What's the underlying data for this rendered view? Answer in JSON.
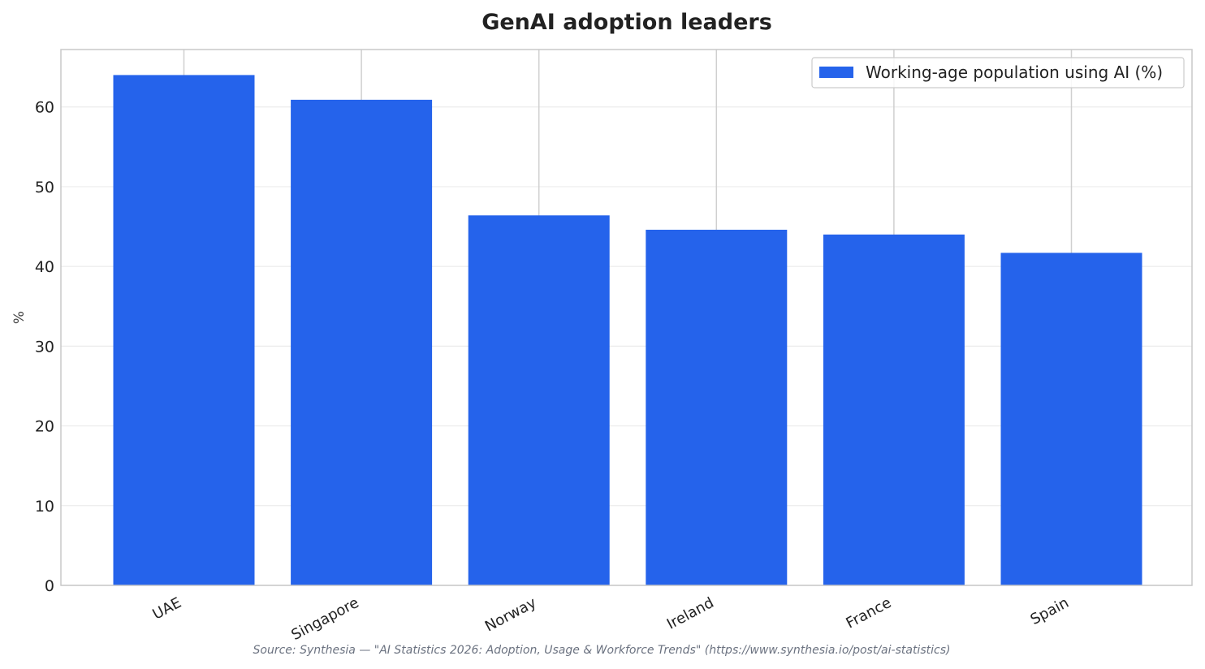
{
  "chart_data": {
    "type": "bar",
    "title": "GenAI adoption leaders",
    "xlabel": "",
    "ylabel": "%",
    "categories": [
      "UAE",
      "Singapore",
      "Norway",
      "Ireland",
      "France",
      "Spain"
    ],
    "series": [
      {
        "name": "Working-age population using AI (%)",
        "values": [
          64.0,
          60.9,
          46.4,
          44.6,
          44.0,
          41.7
        ],
        "color": "#2563eb"
      }
    ],
    "ylim": [
      0,
      67.2
    ],
    "yticks": [
      "0",
      "10",
      "20",
      "30",
      "40",
      "50",
      "60"
    ],
    "grid": true,
    "legend_position": "top-right",
    "source": "Source: Synthesia — \"AI Statistics 2026: Adoption, Usage & Workforce Trends\" (https://www.synthesia.io/post/ai-statistics)"
  }
}
